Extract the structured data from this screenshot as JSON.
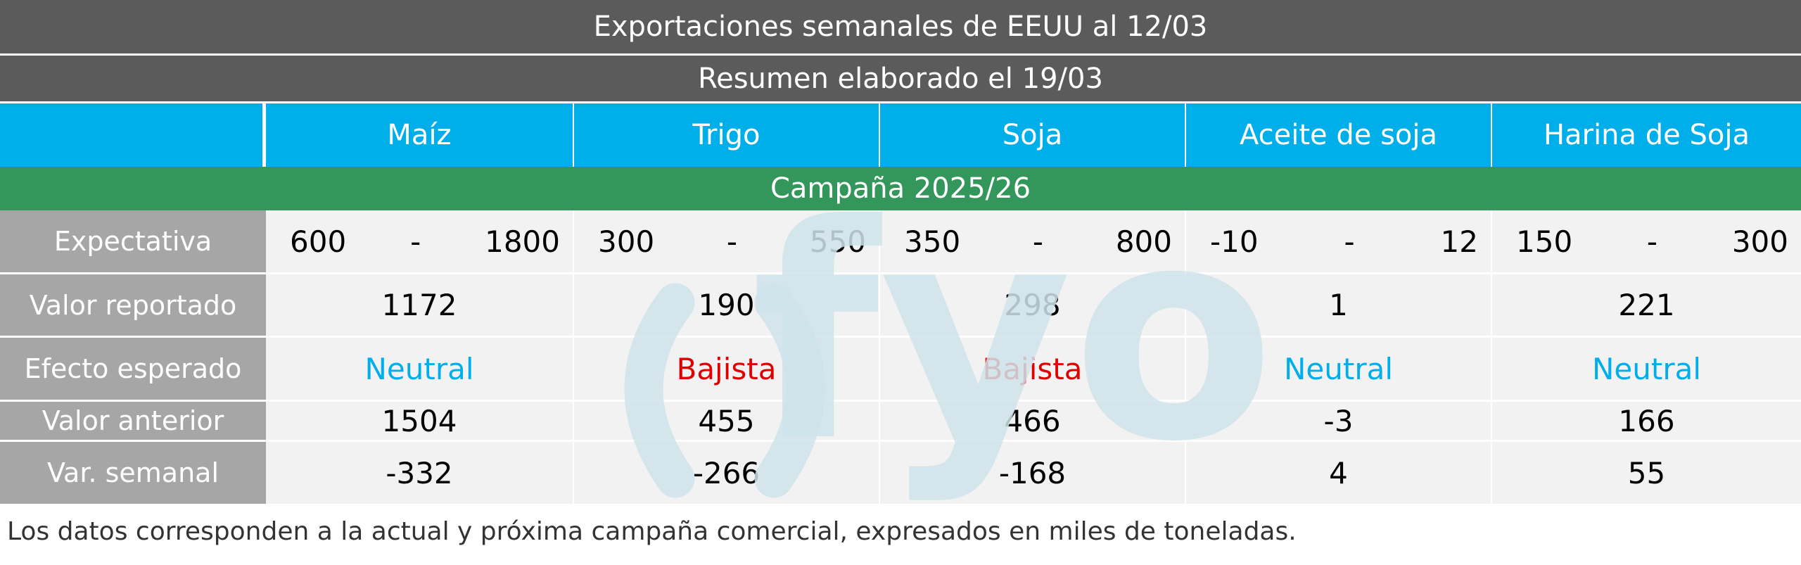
{
  "title": "Exportaciones semanales de EEUU al 12/03",
  "subtitle": "Resumen elaborado el 19/03",
  "columns": [
    "Maíz",
    "Trigo",
    "Soja",
    "Aceite de soja",
    "Harina de Soja"
  ],
  "campaign": "Campaña 2025/26",
  "row_labels": {
    "expectativa": "Expectativa",
    "valor_reportado": "Valor reportado",
    "efecto": "Efecto esperado",
    "valor_anterior": "Valor anterior",
    "var_semanal": "Var. semanal"
  },
  "expectativa": [
    {
      "min": "600",
      "sep": "-",
      "max": "1800"
    },
    {
      "min": "300",
      "sep": "-",
      "max": "550"
    },
    {
      "min": "350",
      "sep": "-",
      "max": "800"
    },
    {
      "min": "-10",
      "sep": "-",
      "max": "12"
    },
    {
      "min": "150",
      "sep": "-",
      "max": "300"
    }
  ],
  "valor_reportado": [
    "1172",
    "190",
    "298",
    "1",
    "221"
  ],
  "efecto": [
    "Neutral",
    "Bajista",
    "Bajista",
    "Neutral",
    "Neutral"
  ],
  "valor_anterior": [
    "1504",
    "455",
    "466",
    "-3",
    "166"
  ],
  "var_semanal": [
    "-332",
    "-266",
    "-168",
    "4",
    "55"
  ],
  "watermark": "fyo",
  "footer": "Los datos corresponden a la actual y próxima campaña comercial, expresados en miles de toneladas.",
  "colors": {
    "banner": "#5b5b5b",
    "header": "#00aee9",
    "campaign": "#33965a",
    "label": "#a6a6a6",
    "cell": "#f2f2f2",
    "neutral": "#00aee9",
    "bajista": "#e00000",
    "watermark": "#cfe3ea"
  }
}
